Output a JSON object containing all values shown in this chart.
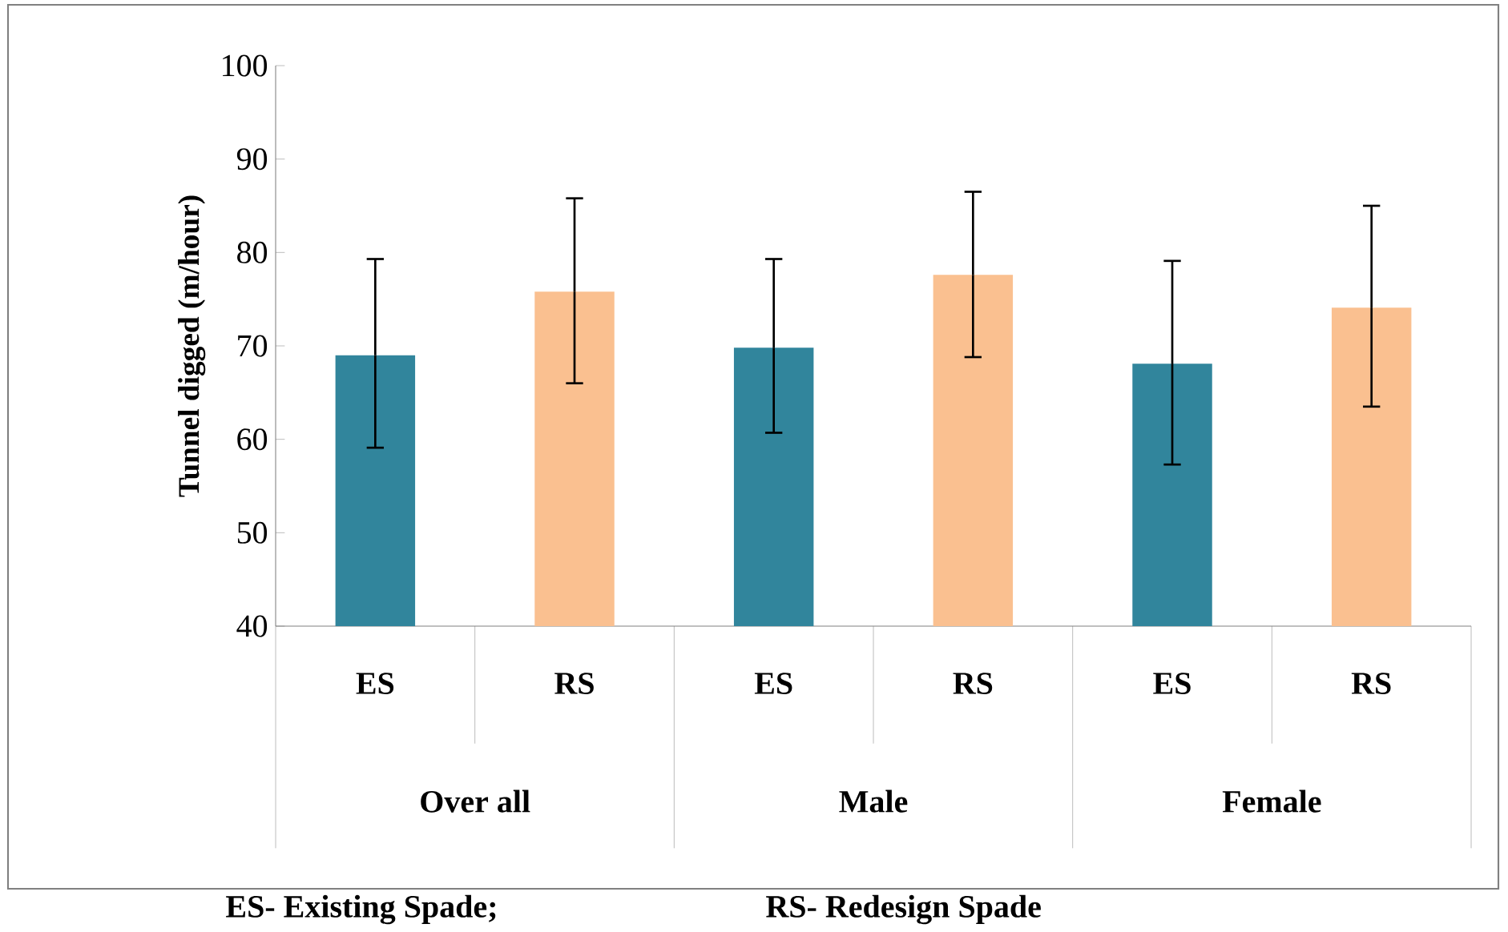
{
  "chart_data": {
    "type": "bar",
    "ylabel": "Tunnel digged (m/hour)",
    "categories": [
      "ES",
      "RS",
      "ES",
      "RS",
      "ES",
      "RS"
    ],
    "values": [
      69,
      75.8,
      69.8,
      77.6,
      68.1,
      74.1
    ],
    "errors": [
      [
        59.1,
        79.3
      ],
      [
        66,
        85.8
      ],
      [
        60.7,
        79.3
      ],
      [
        68.8,
        86.5
      ],
      [
        57.3,
        79.1
      ],
      [
        63.5,
        85
      ]
    ],
    "colors": [
      "#31859c",
      "#fac090",
      "#31859c",
      "#fac090",
      "#31859c",
      "#fac090"
    ],
    "ylim": [
      40,
      100
    ],
    "yticks": [
      40,
      50,
      60,
      70,
      80,
      90,
      100
    ],
    "grid": false,
    "annotations": [
      "Over all",
      "Male",
      "Female",
      "ES- Existing Spade;",
      "RS- Redesign Spade"
    ]
  }
}
